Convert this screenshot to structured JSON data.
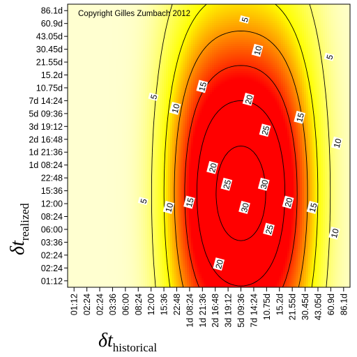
{
  "chart_data": {
    "type": "heatmap",
    "title": "",
    "annotation": "Copyright Gilles Zumbach 2012",
    "xlabel": {
      "main": "δt",
      "sub": "historical"
    },
    "ylabel": {
      "main": "δt",
      "sub": "realized"
    },
    "x_ticks": [
      "01:12",
      "02:24",
      "02:24",
      "03:36",
      "06:00",
      "08:24",
      "12:00",
      "15:36",
      "22:48",
      "1d 08:24",
      "1d 21:36",
      "2d 16:48",
      "3d 19:12",
      "5d 09:36",
      "7d 14:24",
      "10.75d",
      "15.2d",
      "21.55d",
      "30.45d",
      "43.05d",
      "60.9d",
      "86.1d"
    ],
    "y_ticks": [
      "86.1d",
      "60.9d",
      "43.05d",
      "30.45d",
      "21.55d",
      "15.2d",
      "10.75d",
      "7d 14:24",
      "5d 09:36",
      "3d 19:12",
      "2d 16:48",
      "1d 21:36",
      "1d 08:24",
      "22:48",
      "15:36",
      "12:00",
      "08:24",
      "06:00",
      "03:36",
      "02:24",
      "02:24",
      "01:12"
    ],
    "contour_levels": [
      5,
      10,
      15,
      20,
      25,
      30
    ],
    "peak": {
      "x": "5d 09:36",
      "y": "15:36",
      "value": 32
    },
    "colorscale": [
      "#ffffd0",
      "#ffff00",
      "#ff0000"
    ],
    "contour_labels": [
      {
        "value": "5",
        "x": 13.3,
        "y": 0.7
      },
      {
        "value": "5",
        "x": 19.9,
        "y": 3.6
      },
      {
        "value": "5",
        "x": 6.2,
        "y": 6.7
      },
      {
        "value": "5",
        "x": 5.4,
        "y": 14.8
      },
      {
        "value": "10",
        "x": 14.3,
        "y": 3.1
      },
      {
        "value": "10",
        "x": 7.9,
        "y": 7.6
      },
      {
        "value": "10",
        "x": 20.5,
        "y": 10.3
      },
      {
        "value": "10",
        "x": 7.4,
        "y": 15.3
      },
      {
        "value": "10",
        "x": 20.3,
        "y": 17.3
      },
      {
        "value": "15",
        "x": 10.0,
        "y": 5.9
      },
      {
        "value": "15",
        "x": 17.6,
        "y": 8.3
      },
      {
        "value": "15",
        "x": 9.0,
        "y": 14.9
      },
      {
        "value": "15",
        "x": 18.6,
        "y": 15.3
      },
      {
        "value": "20",
        "x": 13.6,
        "y": 6.9
      },
      {
        "value": "20",
        "x": 10.8,
        "y": 12.2
      },
      {
        "value": "20",
        "x": 16.7,
        "y": 14.9
      },
      {
        "value": "20",
        "x": 11.3,
        "y": 19.7
      },
      {
        "value": "25",
        "x": 14.9,
        "y": 9.3
      },
      {
        "value": "25",
        "x": 11.9,
        "y": 13.5
      },
      {
        "value": "25",
        "x": 15.2,
        "y": 17.0
      },
      {
        "value": "30",
        "x": 14.8,
        "y": 13.5
      },
      {
        "value": "30",
        "x": 13.3,
        "y": 15.3
      }
    ]
  }
}
